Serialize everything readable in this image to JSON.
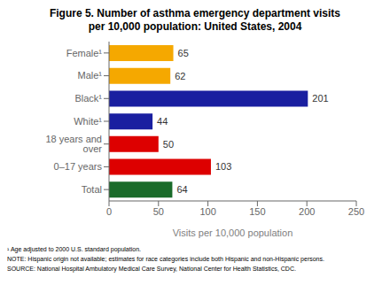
{
  "chart_data": {
    "type": "bar",
    "orientation": "horizontal",
    "title": "Figure 5. Number of asthma emergency department visits\nper 10,000 population: United States, 2004",
    "categories": [
      "Female¹",
      "Male¹",
      "Black¹",
      "White¹",
      "18 years and over",
      "0–17 years",
      "Total"
    ],
    "values": [
      65,
      62,
      201,
      44,
      50,
      103,
      64
    ],
    "colors": [
      "#F5A800",
      "#F5A800",
      "#1A1FA0",
      "#1A1FA0",
      "#DD0000",
      "#DD0000",
      "#1A6B2A"
    ],
    "xlabel": "Visits per 10,000 population",
    "xlim": [
      0,
      250
    ],
    "xticks": [
      0,
      50,
      100,
      150,
      200,
      250
    ],
    "data_labels": true,
    "grid": false,
    "annotations": [
      "¹ Age adjusted to 2000 U.S. standard population.",
      "NOTE: Hispanic origin not available; estimates for race categories include both Hispanic and non-Hispanic persons.",
      "SOURCE: National Hospital Ambulatory Medical Care Survey, National Center for Health Statistics, CDC."
    ]
  }
}
